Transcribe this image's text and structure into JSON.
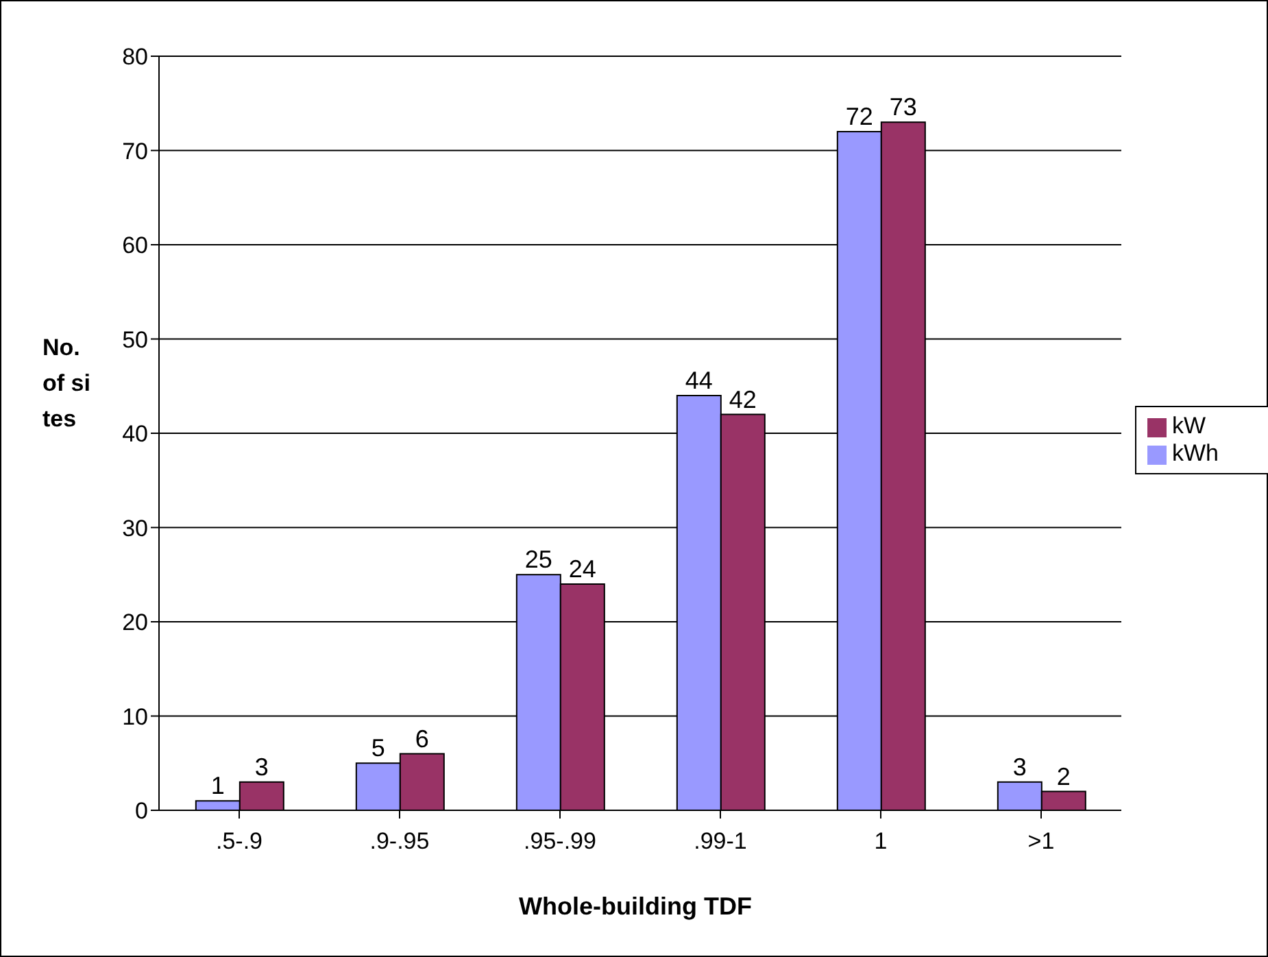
{
  "chart_data": {
    "type": "bar",
    "xlabel": "Whole-building TDF",
    "ylabel": "No. of sites",
    "categories": [
      ".5-.9",
      ".9-.95",
      ".95-.99",
      ".99-1",
      "1",
      ">1"
    ],
    "series": [
      {
        "name": "kWh",
        "color": "#9999ff",
        "values": [
          1,
          5,
          25,
          44,
          72,
          3
        ]
      },
      {
        "name": "kW",
        "color": "#993366",
        "values": [
          3,
          6,
          24,
          42,
          73,
          2
        ]
      }
    ],
    "ylim": [
      0,
      80
    ],
    "yticks": [
      0,
      10,
      20,
      30,
      40,
      50,
      60,
      70,
      80
    ],
    "grid": "y",
    "legend": "right",
    "data_labels": true
  }
}
